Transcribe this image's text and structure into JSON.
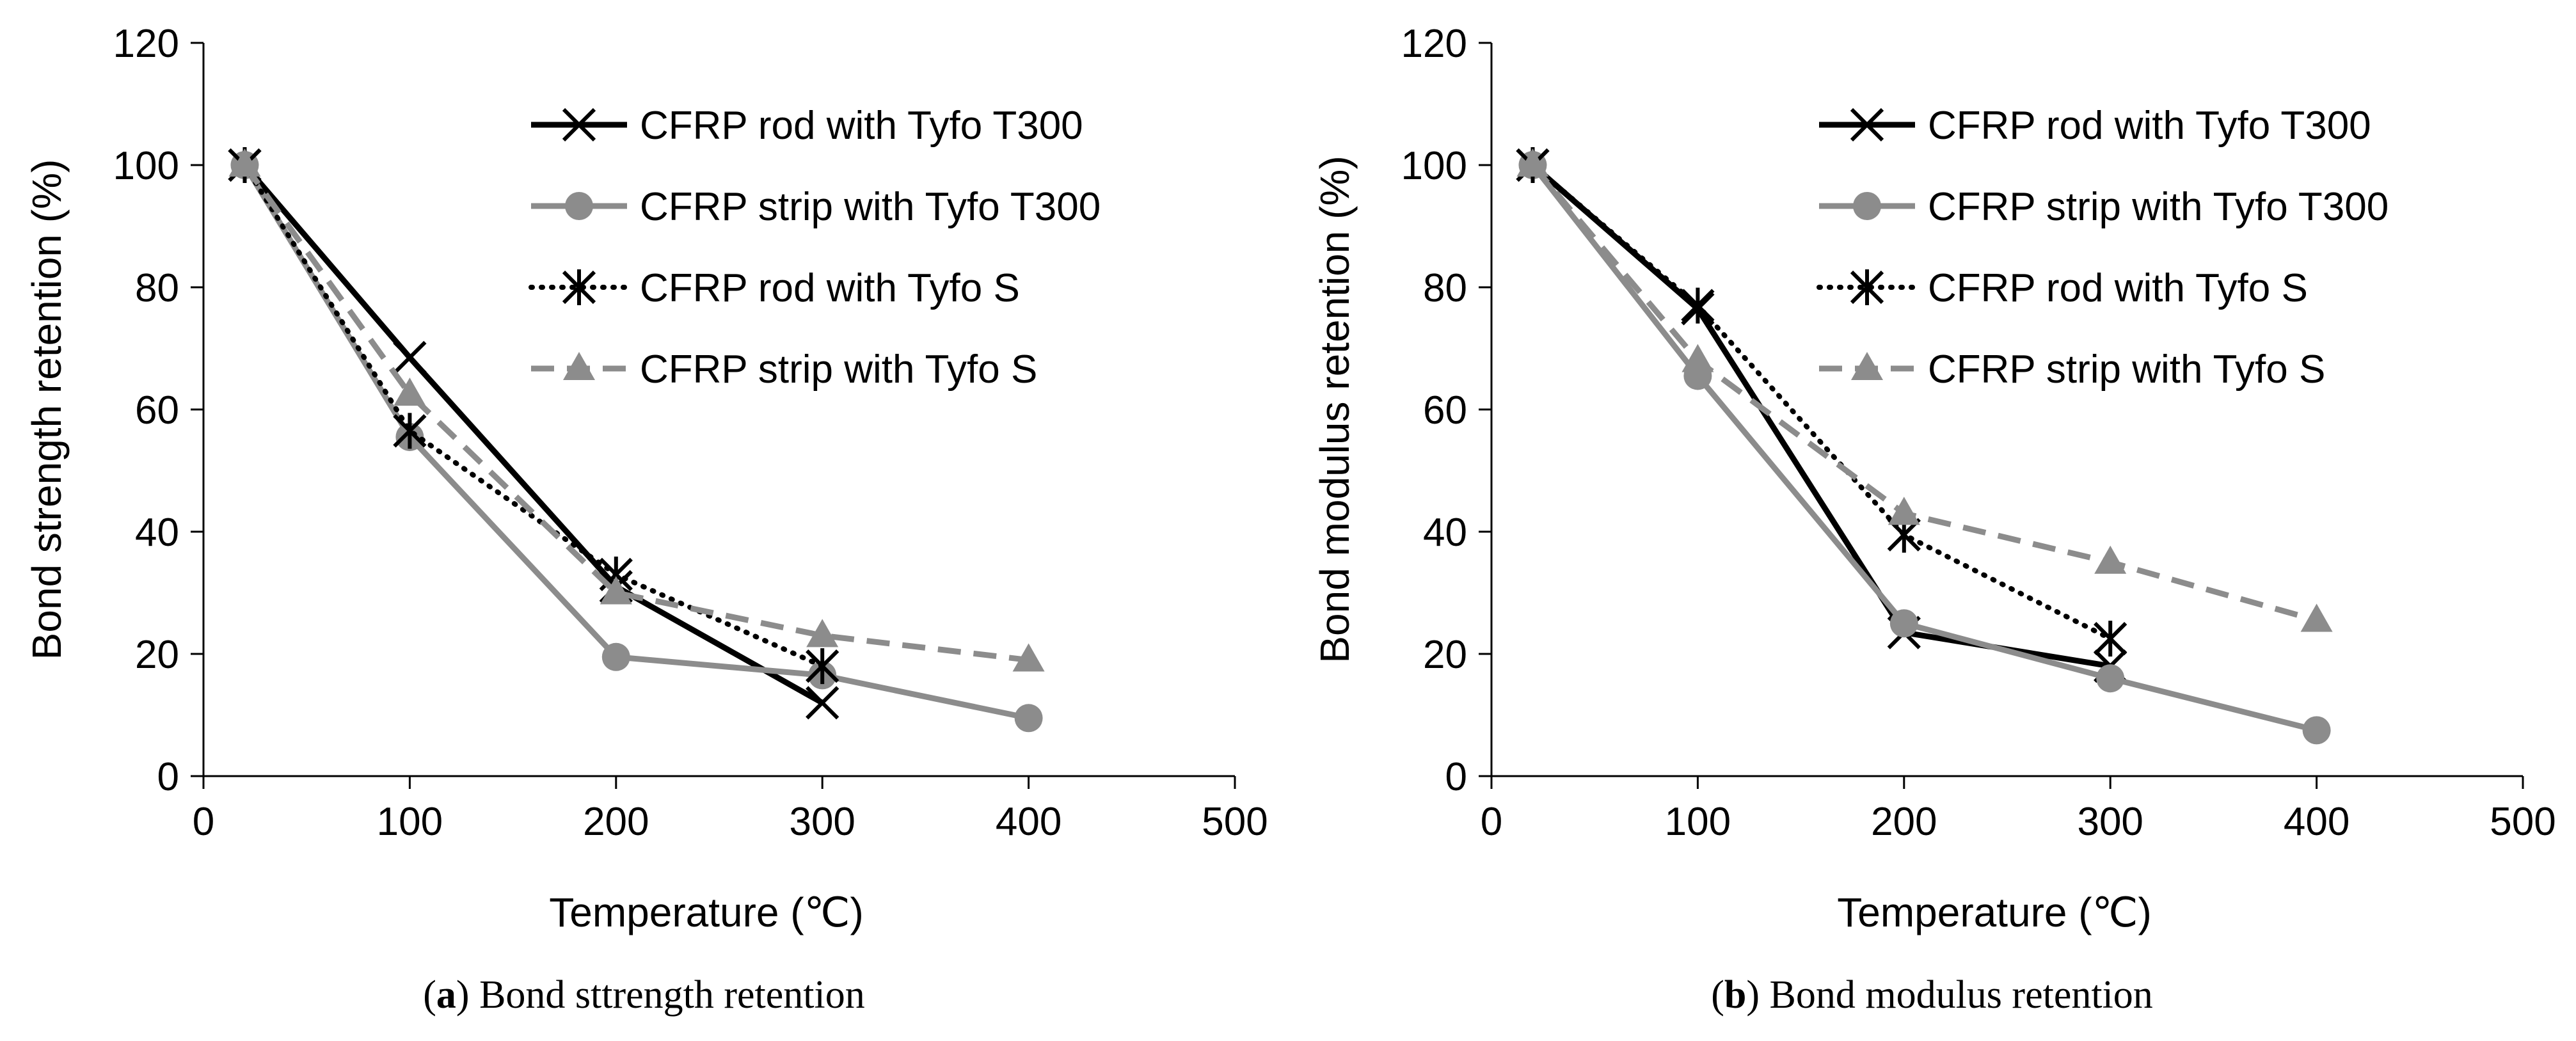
{
  "chart_data": [
    {
      "type": "line",
      "panel_letter": "a",
      "caption_text": "Bond sttrength retention",
      "xlabel": "Temperature (℃)",
      "ylabel": "Bond strength retention (%)",
      "xlim": [
        0,
        500
      ],
      "ylim": [
        0,
        120
      ],
      "xticks": [
        0,
        100,
        200,
        300,
        400,
        500
      ],
      "yticks": [
        0,
        20,
        40,
        60,
        80,
        100,
        120
      ],
      "grid": false,
      "legend_position": "top-right",
      "series": [
        {
          "name": "CFRP rod with Tyfo T300",
          "marker": "x",
          "line": "solid",
          "color": "#000000",
          "x": [
            20,
            100,
            200,
            300
          ],
          "y": [
            100,
            68.5,
            31,
            12
          ]
        },
        {
          "name": "CFRP strip with Tyfo T300",
          "marker": "circle",
          "line": "solid",
          "color": "#8c8c8c",
          "x": [
            20,
            100,
            200,
            300,
            400
          ],
          "y": [
            100,
            55.5,
            19.5,
            16.5,
            9.5
          ]
        },
        {
          "name": "CFRP rod with Tyfo S",
          "marker": "star",
          "line": "dotted",
          "color": "#000000",
          "x": [
            20,
            100,
            200,
            300
          ],
          "y": [
            100,
            56.5,
            33,
            18
          ]
        },
        {
          "name": "CFRP strip with Tyfo S",
          "marker": "triangle",
          "line": "dashed",
          "color": "#8c8c8c",
          "x": [
            20,
            100,
            200,
            300,
            400
          ],
          "y": [
            100,
            62.5,
            30,
            23,
            19
          ]
        }
      ]
    },
    {
      "type": "line",
      "panel_letter": "b",
      "caption_text": "Bond modulus retention",
      "xlabel": "Temperature (℃)",
      "ylabel": "Bond modulus retention (%)",
      "xlim": [
        0,
        500
      ],
      "ylim": [
        0,
        120
      ],
      "xticks": [
        0,
        100,
        200,
        300,
        400,
        500
      ],
      "yticks": [
        0,
        20,
        40,
        60,
        80,
        100,
        120
      ],
      "grid": false,
      "legend_position": "top-right",
      "series": [
        {
          "name": "CFRP rod with Tyfo T300",
          "marker": "x",
          "line": "solid",
          "color": "#000000",
          "x": [
            20,
            100,
            200,
            300
          ],
          "y": [
            100,
            76.5,
            23.5,
            18
          ]
        },
        {
          "name": "CFRP strip with Tyfo T300",
          "marker": "circle",
          "line": "solid",
          "color": "#8c8c8c",
          "x": [
            20,
            100,
            200,
            300,
            400
          ],
          "y": [
            100,
            65.5,
            25,
            16,
            7.5
          ]
        },
        {
          "name": "CFRP rod with Tyfo S",
          "marker": "star",
          "line": "dotted",
          "color": "#000000",
          "x": [
            20,
            100,
            200,
            300
          ],
          "y": [
            100,
            77,
            39.5,
            22.5
          ]
        },
        {
          "name": "CFRP strip with Tyfo S",
          "marker": "triangle",
          "line": "dashed",
          "color": "#8c8c8c",
          "x": [
            20,
            100,
            200,
            300,
            400
          ],
          "y": [
            100,
            68,
            43,
            35,
            25.5
          ]
        }
      ]
    }
  ]
}
